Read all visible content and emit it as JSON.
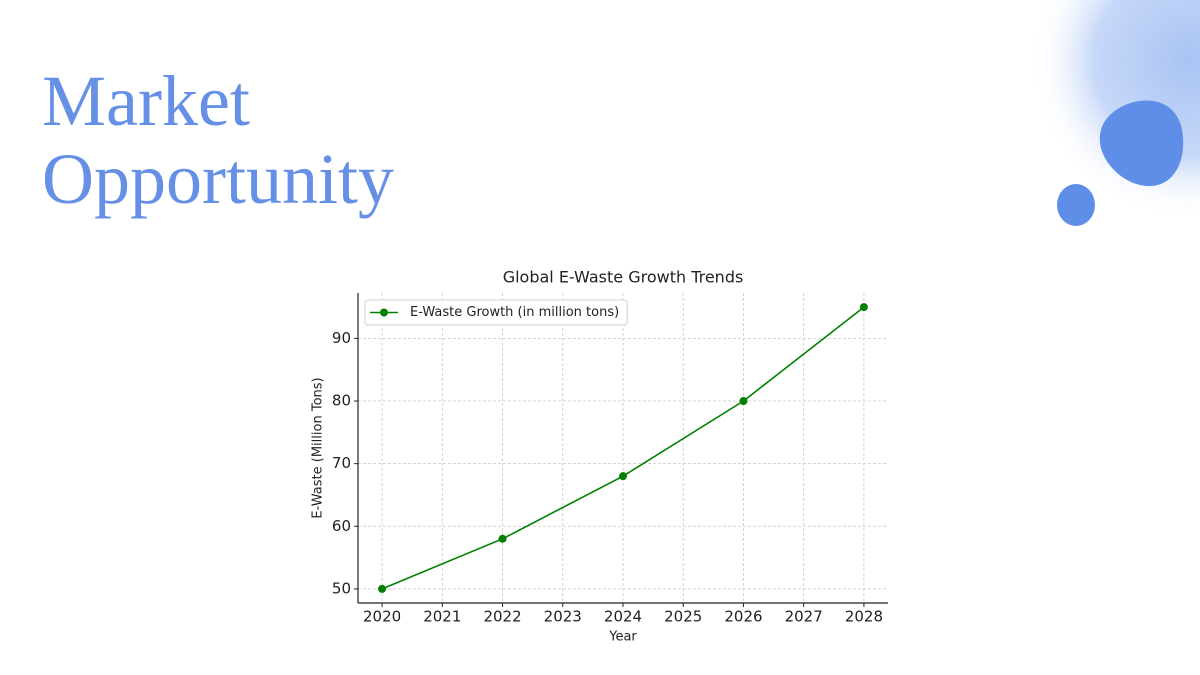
{
  "slide": {
    "title": "Market Opportunity"
  },
  "chart_data": {
    "type": "line",
    "title": "Global E-Waste Growth Trends",
    "x_label": "Year",
    "y_label": "E-Waste (Million Tons)",
    "x": [
      2020,
      2022,
      2024,
      2026,
      2028
    ],
    "series": [
      {
        "name": "E-Waste Growth (in million tons)",
        "color": "#008000",
        "values": [
          50,
          58,
          68,
          80,
          95
        ]
      }
    ],
    "xlim": [
      2019.6,
      2028.4
    ],
    "xticks": [
      2020,
      2021,
      2022,
      2023,
      2024,
      2025,
      2026,
      2027,
      2028
    ],
    "ylim": [
      47.75,
      97.25
    ],
    "yticks": [
      50,
      60,
      70,
      80,
      90
    ],
    "grid": true,
    "legend": "upper-left"
  }
}
